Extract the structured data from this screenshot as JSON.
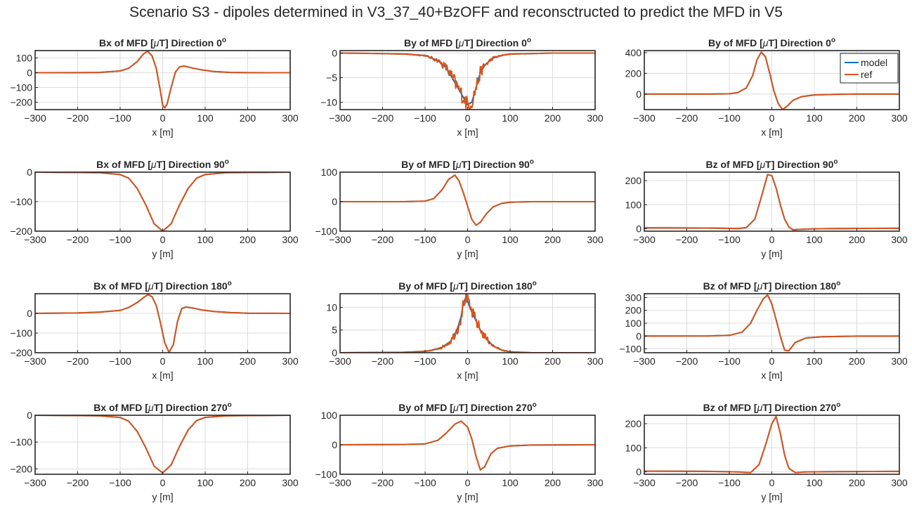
{
  "figure": {
    "title": "Scenario S3 - dipoles determined in V3_37_40+BzOFF and reconsctructed to predict the MFD in V5",
    "colors": {
      "model": "#0072BD",
      "ref": "#D95319",
      "grid": "#dcdcdc",
      "axis": "#262626",
      "background": "#ffffff"
    },
    "legend": {
      "entries": [
        "model",
        "ref"
      ],
      "location": "top-right of first-row third panel"
    },
    "grid": true
  },
  "chart_data": [
    {
      "type": "line",
      "title": {
        "pre": "Bx of MFD [",
        "greek": "μ",
        "post": "T] Direction ",
        "angle": "0",
        "deg": "o"
      },
      "xlabel": "x [m]",
      "xlim": [
        -300,
        300
      ],
      "ylim": [
        -250,
        150
      ],
      "xticks": [
        -300,
        -200,
        -100,
        0,
        100,
        200,
        300
      ],
      "yticks": [
        -200,
        -100,
        0,
        100
      ],
      "x": [
        -300,
        -200,
        -150,
        -100,
        -80,
        -60,
        -45,
        -35,
        -25,
        -15,
        -5,
        0,
        5,
        10,
        20,
        30,
        40,
        50,
        70,
        90,
        120,
        160,
        200,
        300
      ],
      "series": [
        {
          "name": "model",
          "values": [
            0,
            0.5,
            2,
            12,
            30,
            75,
            128,
            145,
            115,
            30,
            -130,
            -220,
            -238,
            -215,
            -100,
            5,
            40,
            45,
            32,
            20,
            8,
            2,
            0.5,
            0
          ]
        },
        {
          "name": "ref",
          "values": [
            0,
            0.5,
            2,
            12,
            30,
            75,
            128,
            145,
            115,
            30,
            -130,
            -220,
            -238,
            -215,
            -100,
            5,
            40,
            45,
            32,
            20,
            8,
            2,
            0.5,
            0
          ]
        }
      ]
    },
    {
      "type": "line",
      "title": {
        "pre": "By of MFD [",
        "greek": "μ",
        "post": "T] Direction ",
        "angle": "0",
        "deg": "o"
      },
      "xlabel": "x [m]",
      "xlim": [
        -300,
        300
      ],
      "ylim": [
        -11.5,
        0.5
      ],
      "xticks": [
        -300,
        -200,
        -100,
        0,
        100,
        200,
        300
      ],
      "yticks": [
        -10,
        -5,
        0
      ],
      "x": [
        -300,
        -200,
        -150,
        -100,
        -70,
        -50,
        -40,
        -30,
        -20,
        -10,
        0,
        10,
        20,
        30,
        40,
        60,
        80,
        100,
        150,
        200,
        300
      ],
      "series": [
        {
          "name": "model",
          "values": [
            0,
            -0.1,
            -0.2,
            -0.5,
            -1.5,
            -3,
            -4.5,
            -6,
            -7.5,
            -9,
            -10.5,
            -10,
            -7,
            -4,
            -2.5,
            -1,
            -0.5,
            -0.2,
            -0.1,
            0,
            0
          ]
        },
        {
          "name": "ref",
          "values": [
            0,
            -0.1,
            -0.2,
            -0.5,
            -1.5,
            -3,
            -4.5,
            -6,
            -7.5,
            -9,
            -10.5,
            -10,
            -7,
            -4,
            -2.5,
            -1,
            -0.5,
            -0.2,
            -0.1,
            0,
            0
          ],
          "noise": 1.6
        }
      ]
    },
    {
      "type": "line",
      "title": {
        "pre": "By of MFD [",
        "greek": "μ",
        "post": "T] Direction ",
        "angle": "0",
        "deg": "o"
      },
      "xlabel": "x [m]",
      "xlim": [
        -300,
        300
      ],
      "ylim": [
        -150,
        420
      ],
      "xticks": [
        -300,
        -200,
        -100,
        0,
        100,
        200,
        300
      ],
      "yticks": [
        0,
        200,
        400
      ],
      "x": [
        -300,
        -150,
        -100,
        -80,
        -60,
        -45,
        -35,
        -25,
        -15,
        -5,
        5,
        15,
        25,
        35,
        50,
        70,
        100,
        150,
        200,
        300
      ],
      "series": [
        {
          "name": "model",
          "values": [
            0,
            0,
            3,
            15,
            60,
            180,
            330,
            405,
            360,
            200,
            30,
            -90,
            -150,
            -120,
            -60,
            -25,
            -8,
            -2,
            0,
            0
          ]
        },
        {
          "name": "ref",
          "values": [
            0,
            0,
            3,
            15,
            60,
            180,
            330,
            405,
            360,
            200,
            30,
            -90,
            -150,
            -120,
            -60,
            -25,
            -8,
            -2,
            0,
            0
          ]
        }
      ]
    },
    {
      "type": "line",
      "title": {
        "pre": "Bx of MFD [",
        "greek": "μ",
        "post": "T] Direction ",
        "angle": "90",
        "deg": "o"
      },
      "xlabel": "y [m]",
      "xlim": [
        -300,
        300
      ],
      "ylim": [
        -200,
        0
      ],
      "xticks": [
        -300,
        -200,
        -100,
        0,
        100,
        200,
        300
      ],
      "yticks": [
        -200,
        -100,
        0
      ],
      "x": [
        -300,
        -150,
        -100,
        -80,
        -60,
        -40,
        -20,
        0,
        20,
        40,
        60,
        80,
        100,
        150,
        300
      ],
      "series": [
        {
          "name": "model",
          "values": [
            0,
            -2,
            -8,
            -20,
            -55,
            -110,
            -175,
            -200,
            -175,
            -110,
            -55,
            -20,
            -8,
            -2,
            0
          ]
        },
        {
          "name": "ref",
          "values": [
            0,
            -2,
            -8,
            -20,
            -55,
            -110,
            -175,
            -200,
            -175,
            -110,
            -55,
            -20,
            -8,
            -2,
            0
          ]
        }
      ]
    },
    {
      "type": "line",
      "title": {
        "pre": "By of MFD [",
        "greek": "μ",
        "post": "T] Direction ",
        "angle": "90",
        "deg": "o"
      },
      "xlabel": "y [m]",
      "xlim": [
        -300,
        300
      ],
      "ylim": [
        -100,
        100
      ],
      "xticks": [
        -300,
        -200,
        -100,
        0,
        100,
        200,
        300
      ],
      "yticks": [
        -100,
        0,
        100
      ],
      "x": [
        -300,
        -150,
        -100,
        -80,
        -60,
        -45,
        -30,
        -20,
        -10,
        0,
        10,
        20,
        30,
        45,
        60,
        80,
        100,
        150,
        300
      ],
      "series": [
        {
          "name": "model",
          "values": [
            0,
            0,
            2,
            10,
            40,
            75,
            90,
            70,
            30,
            -15,
            -60,
            -80,
            -70,
            -40,
            -18,
            -6,
            -2,
            0,
            0
          ]
        },
        {
          "name": "ref",
          "values": [
            0,
            0,
            2,
            10,
            40,
            75,
            90,
            70,
            30,
            -15,
            -60,
            -80,
            -70,
            -40,
            -18,
            -6,
            -2,
            0,
            0
          ]
        }
      ]
    },
    {
      "type": "line",
      "title": {
        "pre": "Bz of MFD [",
        "greek": "μ",
        "post": "T] Direction ",
        "angle": "90",
        "deg": "o"
      },
      "xlabel": "y [m]",
      "xlim": [
        -300,
        300
      ],
      "ylim": [
        -10,
        235
      ],
      "xticks": [
        -300,
        -200,
        -100,
        0,
        100,
        200,
        300
      ],
      "yticks": [
        0,
        100,
        200
      ],
      "x": [
        -300,
        -150,
        -80,
        -60,
        -40,
        -25,
        -10,
        0,
        10,
        20,
        30,
        40,
        50,
        60,
        100,
        150,
        300
      ],
      "series": [
        {
          "name": "model",
          "values": [
            4,
            3,
            1,
            5,
            40,
            130,
            225,
            220,
            170,
            100,
            40,
            8,
            -5,
            -3,
            0,
            1,
            2
          ]
        },
        {
          "name": "ref",
          "values": [
            4,
            3,
            1,
            5,
            40,
            130,
            225,
            220,
            170,
            100,
            40,
            8,
            -5,
            -3,
            0,
            1,
            2
          ]
        }
      ]
    },
    {
      "type": "line",
      "title": {
        "pre": "Bx of MFD [",
        "greek": "μ",
        "post": "T] Direction ",
        "angle": "180",
        "deg": "o"
      },
      "xlabel": "x [m]",
      "xlim": [
        -300,
        300
      ],
      "ylim": [
        -200,
        100
      ],
      "xticks": [
        -300,
        -200,
        -100,
        0,
        100,
        200,
        300
      ],
      "yticks": [
        -200,
        -100,
        0
      ],
      "x": [
        -300,
        -200,
        -150,
        -100,
        -80,
        -60,
        -45,
        -35,
        -25,
        -15,
        -5,
        5,
        15,
        25,
        35,
        45,
        55,
        70,
        90,
        120,
        160,
        200,
        300
      ],
      "series": [
        {
          "name": "model",
          "values": [
            0,
            2,
            6,
            15,
            30,
            55,
            80,
            95,
            85,
            40,
            -50,
            -150,
            -198,
            -160,
            -40,
            25,
            32,
            28,
            18,
            10,
            4,
            1,
            0
          ]
        },
        {
          "name": "ref",
          "values": [
            0,
            2,
            6,
            15,
            30,
            55,
            80,
            95,
            85,
            40,
            -50,
            -150,
            -198,
            -160,
            -40,
            25,
            32,
            28,
            18,
            10,
            4,
            1,
            0
          ]
        }
      ]
    },
    {
      "type": "line",
      "title": {
        "pre": "By of MFD [",
        "greek": "μ",
        "post": "T] Direction ",
        "angle": "180",
        "deg": "o"
      },
      "xlabel": "x [m]",
      "xlim": [
        -300,
        300
      ],
      "ylim": [
        0,
        13
      ],
      "xticks": [
        -300,
        -200,
        -100,
        0,
        100,
        200,
        300
      ],
      "yticks": [
        0,
        5,
        10
      ],
      "x": [
        -300,
        -150,
        -100,
        -80,
        -60,
        -40,
        -25,
        -15,
        -10,
        -5,
        0,
        5,
        10,
        20,
        30,
        45,
        60,
        80,
        100,
        150,
        300
      ],
      "series": [
        {
          "name": "model",
          "values": [
            0,
            0.1,
            0.3,
            0.6,
            1.2,
            2.5,
            5,
            8,
            11,
            12,
            11.5,
            10,
            9,
            7,
            5,
            3,
            1.5,
            0.6,
            0.2,
            0,
            0
          ]
        },
        {
          "name": "ref",
          "values": [
            0,
            0.1,
            0.3,
            0.6,
            1.2,
            2.5,
            5,
            8,
            11,
            12,
            11.5,
            10,
            9,
            7,
            5,
            3,
            1.5,
            0.6,
            0.2,
            0,
            0
          ],
          "noise": 1.4
        }
      ]
    },
    {
      "type": "line",
      "title": {
        "pre": "Bz of MFD [",
        "greek": "μ",
        "post": "T] Direction ",
        "angle": "180",
        "deg": "o"
      },
      "xlabel": "x [m]",
      "xlim": [
        -300,
        300
      ],
      "ylim": [
        -130,
        330
      ],
      "xticks": [
        -300,
        -200,
        -100,
        0,
        100,
        200,
        300
      ],
      "yticks": [
        -100,
        0,
        100,
        200,
        300
      ],
      "x": [
        -300,
        -150,
        -100,
        -70,
        -50,
        -35,
        -20,
        -10,
        0,
        10,
        20,
        30,
        40,
        55,
        80,
        120,
        200,
        300
      ],
      "series": [
        {
          "name": "model",
          "values": [
            0,
            1,
            5,
            30,
            100,
            200,
            290,
            320,
            250,
            130,
            0,
            -110,
            -115,
            -50,
            -15,
            -5,
            -1,
            0
          ]
        },
        {
          "name": "ref",
          "values": [
            0,
            1,
            5,
            30,
            100,
            200,
            290,
            320,
            250,
            130,
            0,
            -110,
            -115,
            -50,
            -15,
            -5,
            -1,
            0
          ]
        }
      ]
    },
    {
      "type": "line",
      "title": {
        "pre": "Bx of MFD [",
        "greek": "μ",
        "post": "T] Direction ",
        "angle": "270",
        "deg": "o"
      },
      "xlabel": "y [m]",
      "xlim": [
        -300,
        300
      ],
      "ylim": [
        -220,
        0
      ],
      "xticks": [
        -300,
        -200,
        -100,
        0,
        100,
        200,
        300
      ],
      "yticks": [
        -200,
        -100,
        0
      ],
      "x": [
        -300,
        -150,
        -100,
        -80,
        -60,
        -40,
        -20,
        0,
        20,
        40,
        60,
        80,
        100,
        150,
        300
      ],
      "series": [
        {
          "name": "model",
          "values": [
            0,
            -2,
            -8,
            -22,
            -60,
            -120,
            -190,
            -215,
            -185,
            -115,
            -55,
            -20,
            -8,
            -2,
            0
          ]
        },
        {
          "name": "ref",
          "values": [
            0,
            -2,
            -8,
            -22,
            -60,
            -120,
            -190,
            -215,
            -185,
            -115,
            -55,
            -20,
            -8,
            -2,
            0
          ]
        }
      ]
    },
    {
      "type": "line",
      "title": {
        "pre": "By of MFD [",
        "greek": "μ",
        "post": "T] Direction ",
        "angle": "270",
        "deg": "o"
      },
      "xlabel": "y [m]",
      "xlim": [
        -300,
        300
      ],
      "ylim": [
        -100,
        100
      ],
      "xticks": [
        -300,
        -200,
        -100,
        0,
        100,
        200,
        300
      ],
      "yticks": [
        -100,
        0,
        100
      ],
      "x": [
        -300,
        -150,
        -100,
        -70,
        -50,
        -30,
        -15,
        0,
        10,
        20,
        30,
        40,
        55,
        70,
        100,
        150,
        300
      ],
      "series": [
        {
          "name": "model",
          "values": [
            0,
            1,
            3,
            15,
            40,
            70,
            80,
            60,
            20,
            -40,
            -85,
            -75,
            -30,
            -12,
            -4,
            -1,
            0
          ]
        },
        {
          "name": "ref",
          "values": [
            0,
            1,
            3,
            15,
            40,
            70,
            80,
            60,
            20,
            -40,
            -85,
            -75,
            -30,
            -12,
            -4,
            -1,
            0
          ]
        }
      ]
    },
    {
      "type": "line",
      "title": {
        "pre": "Bz of MFD [",
        "greek": "μ",
        "post": "T] Direction ",
        "angle": "270",
        "deg": "o"
      },
      "xlabel": "y [m]",
      "xlim": [
        -300,
        300
      ],
      "ylim": [
        -10,
        235
      ],
      "xticks": [
        -300,
        -200,
        -100,
        0,
        100,
        200,
        300
      ],
      "yticks": [
        0,
        100,
        200
      ],
      "x": [
        -300,
        -150,
        -80,
        -50,
        -30,
        -15,
        0,
        10,
        20,
        30,
        40,
        55,
        80,
        150,
        300
      ],
      "series": [
        {
          "name": "model",
          "values": [
            3,
            2,
            0,
            -3,
            30,
            110,
            200,
            230,
            160,
            70,
            15,
            -3,
            0,
            1,
            2
          ]
        },
        {
          "name": "ref",
          "values": [
            3,
            2,
            0,
            -3,
            30,
            110,
            200,
            230,
            160,
            70,
            15,
            -3,
            0,
            1,
            2
          ]
        }
      ]
    }
  ]
}
